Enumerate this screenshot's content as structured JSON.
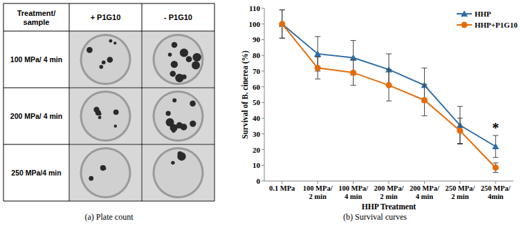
{
  "chart_data": {
    "type": "line",
    "caption": "(b) Survival curves",
    "x_label": "HHP Treatment",
    "y_label": "Survival of B. cinerea (%)",
    "categories": [
      "0.1 MPa",
      "100 MPa/ 2 min",
      "100 MPa/ 4 min",
      "200 MPa/ 2 min",
      "200 MPa/ 4 min",
      "250 MPa/ 2 min",
      "250 MPa/ 4min"
    ],
    "series": [
      {
        "name": "HHP",
        "color": "#2e6ca4",
        "marker": "triangle",
        "values": [
          100,
          81,
          78.5,
          71,
          61,
          35.5,
          22
        ],
        "errors": [
          9,
          11,
          11,
          10,
          11,
          12,
          7
        ]
      },
      {
        "name": "HHP+P1G10",
        "color": "#e46c0a",
        "marker": "circle",
        "values": [
          100,
          72,
          69,
          61,
          51.5,
          32,
          8.5
        ],
        "errors": [
          9,
          7,
          8,
          10,
          10,
          8,
          3
        ]
      }
    ],
    "ylim": [
      0,
      110
    ],
    "yticks": [
      0,
      10,
      20,
      30,
      40,
      50,
      60,
      70,
      80,
      90,
      100,
      110
    ],
    "grid": false,
    "legend": "upper right",
    "annotations": [
      {
        "text": "*",
        "x": "250 MPa/ 4min",
        "y": 31
      }
    ]
  },
  "plate_count": {
    "caption": "(a) Plate count",
    "header": [
      "Treatment/ sample",
      "+ P1G10",
      "- P1G10"
    ],
    "rows": [
      "100 MPa/ 4 min",
      "200 MPa/ 4 min",
      "250 MPa/4 min"
    ]
  }
}
